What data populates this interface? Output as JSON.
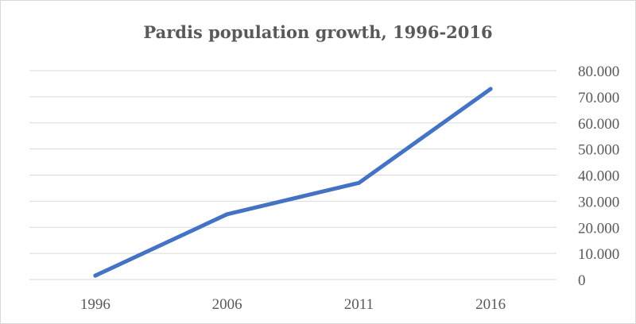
{
  "chart_data": {
    "type": "line",
    "title": "Pardis population growth, 1996-2016",
    "xlabel": "",
    "ylabel": "",
    "categories": [
      "1996",
      "2006",
      "2011",
      "2016"
    ],
    "series": [
      {
        "values": [
          1500,
          25000,
          37000,
          73000
        ]
      }
    ],
    "ylim": [
      0,
      80000
    ],
    "y_ticks": [
      "0",
      "10.000",
      "20.000",
      "30.000",
      "40.000",
      "50.000",
      "60.000",
      "70.000",
      "80.000"
    ],
    "y_axis_side": "right",
    "grid": true,
    "legend": "none",
    "colors": {
      "line": "#4472c4",
      "grid": "#d9d9d9",
      "text": "#595959"
    }
  }
}
